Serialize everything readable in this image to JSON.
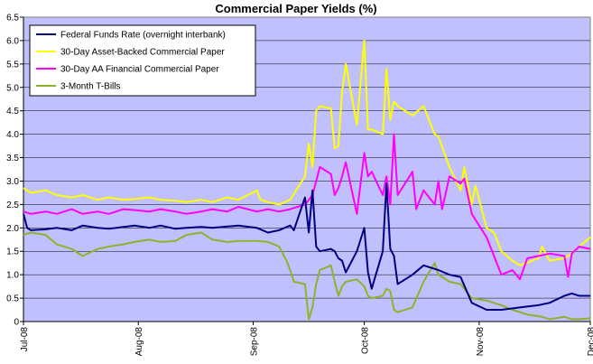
{
  "chart_data": {
    "type": "line",
    "title": "Commercial Paper Yields (%)",
    "xlabel": "",
    "ylabel": "",
    "ylim": [
      0,
      6.5
    ],
    "ytick_step": 0.5,
    "yticks": [
      "0",
      "0.5",
      "1.0",
      "1.5",
      "2.0",
      "2.5",
      "3.0",
      "3.5",
      "4.0",
      "4.5",
      "5.0",
      "5.5",
      "6.0",
      "6.5"
    ],
    "xlim": [
      "2008-07-01",
      "2008-12-01"
    ],
    "x_ticks": [
      {
        "date": "2008-07-01",
        "label": "Jul-08"
      },
      {
        "date": "2008-08-01",
        "label": "Aug-08"
      },
      {
        "date": "2008-09-01",
        "label": "Sep-08"
      },
      {
        "date": "2008-10-01",
        "label": "Oct-08"
      },
      {
        "date": "2008-11-01",
        "label": "Nov-08"
      },
      {
        "date": "2008-12-01",
        "label": "Dec-08"
      }
    ],
    "grid": "horizontal",
    "plot_background": "#c0c0ff",
    "legend_position": "top-left",
    "series": [
      {
        "name": "Federal Funds Rate (overnight interbank)",
        "color": "#000080",
        "points": [
          [
            "2008-07-01",
            2.3
          ],
          [
            "2008-07-02",
            2.0
          ],
          [
            "2008-07-03",
            1.95
          ],
          [
            "2008-07-07",
            1.97
          ],
          [
            "2008-07-10",
            2.0
          ],
          [
            "2008-07-14",
            1.95
          ],
          [
            "2008-07-17",
            2.05
          ],
          [
            "2008-07-21",
            2.0
          ],
          [
            "2008-07-24",
            1.98
          ],
          [
            "2008-07-28",
            2.02
          ],
          [
            "2008-07-31",
            2.05
          ],
          [
            "2008-08-04",
            2.0
          ],
          [
            "2008-08-07",
            2.05
          ],
          [
            "2008-08-11",
            1.98
          ],
          [
            "2008-08-14",
            2.0
          ],
          [
            "2008-08-18",
            2.02
          ],
          [
            "2008-08-21",
            2.0
          ],
          [
            "2008-08-25",
            2.03
          ],
          [
            "2008-08-28",
            2.05
          ],
          [
            "2008-09-02",
            2.0
          ],
          [
            "2008-09-05",
            1.9
          ],
          [
            "2008-09-08",
            1.95
          ],
          [
            "2008-09-11",
            2.05
          ],
          [
            "2008-09-12",
            1.95
          ],
          [
            "2008-09-15",
            2.65
          ],
          [
            "2008-09-16",
            1.9
          ],
          [
            "2008-09-17",
            2.8
          ],
          [
            "2008-09-18",
            1.6
          ],
          [
            "2008-09-19",
            1.5
          ],
          [
            "2008-09-22",
            1.55
          ],
          [
            "2008-09-23",
            1.5
          ],
          [
            "2008-09-24",
            1.35
          ],
          [
            "2008-09-25",
            1.3
          ],
          [
            "2008-09-26",
            1.05
          ],
          [
            "2008-09-29",
            1.5
          ],
          [
            "2008-10-01",
            2.0
          ],
          [
            "2008-10-02",
            1.05
          ],
          [
            "2008-10-03",
            0.7
          ],
          [
            "2008-10-06",
            1.5
          ],
          [
            "2008-10-07",
            2.95
          ],
          [
            "2008-10-08",
            1.55
          ],
          [
            "2008-10-09",
            1.4
          ],
          [
            "2008-10-10",
            0.8
          ],
          [
            "2008-10-14",
            1.0
          ],
          [
            "2008-10-17",
            1.2
          ],
          [
            "2008-10-21",
            1.1
          ],
          [
            "2008-10-24",
            1.0
          ],
          [
            "2008-10-27",
            0.95
          ],
          [
            "2008-10-30",
            0.4
          ],
          [
            "2008-11-03",
            0.25
          ],
          [
            "2008-11-07",
            0.25
          ],
          [
            "2008-11-12",
            0.3
          ],
          [
            "2008-11-17",
            0.35
          ],
          [
            "2008-11-20",
            0.4
          ],
          [
            "2008-11-24",
            0.55
          ],
          [
            "2008-11-26",
            0.6
          ],
          [
            "2008-11-28",
            0.55
          ],
          [
            "2008-12-01",
            0.55
          ]
        ]
      },
      {
        "name": "30-Day Asset-Backed Commercial Paper",
        "color": "#ffff00",
        "points": [
          [
            "2008-07-01",
            2.85
          ],
          [
            "2008-07-03",
            2.75
          ],
          [
            "2008-07-07",
            2.8
          ],
          [
            "2008-07-10",
            2.7
          ],
          [
            "2008-07-14",
            2.65
          ],
          [
            "2008-07-17",
            2.7
          ],
          [
            "2008-07-21",
            2.6
          ],
          [
            "2008-07-24",
            2.65
          ],
          [
            "2008-07-28",
            2.6
          ],
          [
            "2008-07-31",
            2.62
          ],
          [
            "2008-08-04",
            2.65
          ],
          [
            "2008-08-07",
            2.6
          ],
          [
            "2008-08-11",
            2.58
          ],
          [
            "2008-08-14",
            2.55
          ],
          [
            "2008-08-18",
            2.6
          ],
          [
            "2008-08-21",
            2.55
          ],
          [
            "2008-08-25",
            2.65
          ],
          [
            "2008-08-28",
            2.6
          ],
          [
            "2008-09-02",
            2.8
          ],
          [
            "2008-09-03",
            2.6
          ],
          [
            "2008-09-05",
            2.55
          ],
          [
            "2008-09-08",
            2.5
          ],
          [
            "2008-09-11",
            2.6
          ],
          [
            "2008-09-15",
            3.1
          ],
          [
            "2008-09-16",
            3.8
          ],
          [
            "2008-09-17",
            3.3
          ],
          [
            "2008-09-18",
            4.5
          ],
          [
            "2008-09-19",
            4.6
          ],
          [
            "2008-09-22",
            4.55
          ],
          [
            "2008-09-23",
            3.7
          ],
          [
            "2008-09-24",
            3.75
          ],
          [
            "2008-09-25",
            4.9
          ],
          [
            "2008-09-26",
            5.5
          ],
          [
            "2008-09-29",
            4.2
          ],
          [
            "2008-10-01",
            6.0
          ],
          [
            "2008-10-02",
            4.1
          ],
          [
            "2008-10-03",
            4.1
          ],
          [
            "2008-10-06",
            4.0
          ],
          [
            "2008-10-07",
            5.4
          ],
          [
            "2008-10-08",
            4.3
          ],
          [
            "2008-10-09",
            4.7
          ],
          [
            "2008-10-10",
            4.6
          ],
          [
            "2008-10-14",
            4.4
          ],
          [
            "2008-10-17",
            4.6
          ],
          [
            "2008-10-20",
            4.0
          ],
          [
            "2008-10-21",
            3.95
          ],
          [
            "2008-10-24",
            3.3
          ],
          [
            "2008-10-27",
            2.8
          ],
          [
            "2008-10-28",
            3.3
          ],
          [
            "2008-10-30",
            2.5
          ],
          [
            "2008-10-31",
            2.9
          ],
          [
            "2008-11-03",
            2.0
          ],
          [
            "2008-11-05",
            1.9
          ],
          [
            "2008-11-07",
            1.5
          ],
          [
            "2008-11-10",
            1.3
          ],
          [
            "2008-11-12",
            1.2
          ],
          [
            "2008-11-17",
            1.35
          ],
          [
            "2008-11-18",
            1.6
          ],
          [
            "2008-11-20",
            1.3
          ],
          [
            "2008-11-24",
            1.35
          ],
          [
            "2008-11-26",
            1.45
          ],
          [
            "2008-11-28",
            1.6
          ],
          [
            "2008-12-01",
            1.8
          ]
        ]
      },
      {
        "name": "30-Day AA Financial Commercial Paper",
        "color": "#ff00ff",
        "points": [
          [
            "2008-07-01",
            2.35
          ],
          [
            "2008-07-03",
            2.3
          ],
          [
            "2008-07-07",
            2.35
          ],
          [
            "2008-07-10",
            2.3
          ],
          [
            "2008-07-14",
            2.4
          ],
          [
            "2008-07-17",
            2.3
          ],
          [
            "2008-07-21",
            2.35
          ],
          [
            "2008-07-24",
            2.3
          ],
          [
            "2008-07-28",
            2.4
          ],
          [
            "2008-07-31",
            2.38
          ],
          [
            "2008-08-04",
            2.35
          ],
          [
            "2008-08-07",
            2.4
          ],
          [
            "2008-08-11",
            2.35
          ],
          [
            "2008-08-14",
            2.3
          ],
          [
            "2008-08-18",
            2.35
          ],
          [
            "2008-08-21",
            2.4
          ],
          [
            "2008-08-25",
            2.35
          ],
          [
            "2008-08-28",
            2.45
          ],
          [
            "2008-09-02",
            2.35
          ],
          [
            "2008-09-05",
            2.4
          ],
          [
            "2008-09-08",
            2.35
          ],
          [
            "2008-09-11",
            2.4
          ],
          [
            "2008-09-15",
            2.5
          ],
          [
            "2008-09-16",
            2.6
          ],
          [
            "2008-09-17",
            2.7
          ],
          [
            "2008-09-18",
            3.0
          ],
          [
            "2008-09-19",
            3.3
          ],
          [
            "2008-09-22",
            3.15
          ],
          [
            "2008-09-23",
            2.7
          ],
          [
            "2008-09-24",
            2.85
          ],
          [
            "2008-09-25",
            3.1
          ],
          [
            "2008-09-26",
            3.4
          ],
          [
            "2008-09-29",
            2.3
          ],
          [
            "2008-10-01",
            3.6
          ],
          [
            "2008-10-02",
            3.1
          ],
          [
            "2008-10-03",
            3.2
          ],
          [
            "2008-10-06",
            2.7
          ],
          [
            "2008-10-07",
            3.1
          ],
          [
            "2008-10-08",
            2.5
          ],
          [
            "2008-10-09",
            4.0
          ],
          [
            "2008-10-10",
            2.7
          ],
          [
            "2008-10-14",
            3.2
          ],
          [
            "2008-10-15",
            2.4
          ],
          [
            "2008-10-17",
            2.8
          ],
          [
            "2008-10-20",
            2.5
          ],
          [
            "2008-10-21",
            3.0
          ],
          [
            "2008-10-22",
            2.4
          ],
          [
            "2008-10-24",
            3.1
          ],
          [
            "2008-10-27",
            2.95
          ],
          [
            "2008-10-28",
            3.05
          ],
          [
            "2008-10-30",
            2.3
          ],
          [
            "2008-11-03",
            1.8
          ],
          [
            "2008-11-05",
            1.4
          ],
          [
            "2008-11-07",
            1.0
          ],
          [
            "2008-11-10",
            1.1
          ],
          [
            "2008-11-12",
            0.9
          ],
          [
            "2008-11-14",
            1.35
          ],
          [
            "2008-11-17",
            1.4
          ],
          [
            "2008-11-20",
            1.45
          ],
          [
            "2008-11-24",
            1.4
          ],
          [
            "2008-11-25",
            0.95
          ],
          [
            "2008-11-26",
            1.45
          ],
          [
            "2008-11-28",
            1.6
          ],
          [
            "2008-12-01",
            1.55
          ]
        ]
      },
      {
        "name": "3-Month T-Bills",
        "color": "#8db32a",
        "points": [
          [
            "2008-07-01",
            1.85
          ],
          [
            "2008-07-03",
            1.9
          ],
          [
            "2008-07-07",
            1.85
          ],
          [
            "2008-07-10",
            1.65
          ],
          [
            "2008-07-14",
            1.55
          ],
          [
            "2008-07-17",
            1.4
          ],
          [
            "2008-07-21",
            1.55
          ],
          [
            "2008-07-24",
            1.6
          ],
          [
            "2008-07-28",
            1.65
          ],
          [
            "2008-07-31",
            1.7
          ],
          [
            "2008-08-04",
            1.75
          ],
          [
            "2008-08-07",
            1.7
          ],
          [
            "2008-08-11",
            1.72
          ],
          [
            "2008-08-14",
            1.85
          ],
          [
            "2008-08-18",
            1.9
          ],
          [
            "2008-08-21",
            1.75
          ],
          [
            "2008-08-25",
            1.7
          ],
          [
            "2008-08-28",
            1.72
          ],
          [
            "2008-09-02",
            1.72
          ],
          [
            "2008-09-05",
            1.7
          ],
          [
            "2008-09-08",
            1.6
          ],
          [
            "2008-09-10",
            1.3
          ],
          [
            "2008-09-11",
            1.1
          ],
          [
            "2008-09-12",
            0.85
          ],
          [
            "2008-09-15",
            0.8
          ],
          [
            "2008-09-16",
            0.05
          ],
          [
            "2008-09-17",
            0.3
          ],
          [
            "2008-09-18",
            0.8
          ],
          [
            "2008-09-19",
            1.1
          ],
          [
            "2008-09-22",
            1.2
          ],
          [
            "2008-09-23",
            0.85
          ],
          [
            "2008-09-24",
            0.55
          ],
          [
            "2008-09-25",
            0.75
          ],
          [
            "2008-09-26",
            0.85
          ],
          [
            "2008-09-29",
            0.9
          ],
          [
            "2008-10-01",
            0.75
          ],
          [
            "2008-10-02",
            0.55
          ],
          [
            "2008-10-03",
            0.5
          ],
          [
            "2008-10-06",
            0.55
          ],
          [
            "2008-10-07",
            0.7
          ],
          [
            "2008-10-08",
            0.65
          ],
          [
            "2008-10-09",
            0.25
          ],
          [
            "2008-10-10",
            0.2
          ],
          [
            "2008-10-14",
            0.3
          ],
          [
            "2008-10-17",
            0.85
          ],
          [
            "2008-10-20",
            1.25
          ],
          [
            "2008-10-21",
            1.0
          ],
          [
            "2008-10-24",
            0.85
          ],
          [
            "2008-10-27",
            0.8
          ],
          [
            "2008-10-30",
            0.5
          ],
          [
            "2008-11-03",
            0.45
          ],
          [
            "2008-11-07",
            0.35
          ],
          [
            "2008-11-10",
            0.25
          ],
          [
            "2008-11-14",
            0.15
          ],
          [
            "2008-11-18",
            0.1
          ],
          [
            "2008-11-20",
            0.05
          ],
          [
            "2008-11-24",
            0.1
          ],
          [
            "2008-11-26",
            0.05
          ],
          [
            "2008-11-28",
            0.05
          ],
          [
            "2008-12-01",
            0.07
          ]
        ]
      }
    ]
  }
}
